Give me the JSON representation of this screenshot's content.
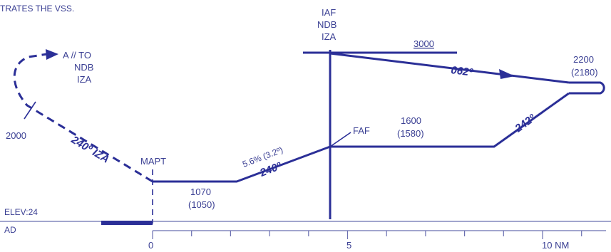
{
  "header_text": "TRATES THE VSS.",
  "fix_iaf": {
    "line1": "IAF",
    "line2": "NDB",
    "line3": "IZA"
  },
  "missed_approach_fix": {
    "line1": "A // TO",
    "line2": "NDB",
    "line3": "IZA"
  },
  "altitudes": {
    "initial": "3000",
    "procedure_turn_alt": "2200",
    "procedure_turn_alt_height": "(2180)",
    "faf_alt": "1600",
    "faf_alt_height": "(1580)",
    "mda": "1070",
    "mda_height": "(1050)",
    "missed_climb": "2000"
  },
  "courses": {
    "outbound": "062º",
    "inbound_turn": "242º",
    "final": "240º",
    "missed": "240º IZA"
  },
  "gradient": "5.6% (3.2º)",
  "labels": {
    "faf": "FAF",
    "mapt": "MAPT",
    "elevation": "ELEV:24",
    "aerodrome": "AD"
  },
  "scale": {
    "zero": "0",
    "five": "5",
    "ten": "10 NM"
  },
  "colors": {
    "line": "#2b2f97",
    "text": "#3a3f93"
  }
}
